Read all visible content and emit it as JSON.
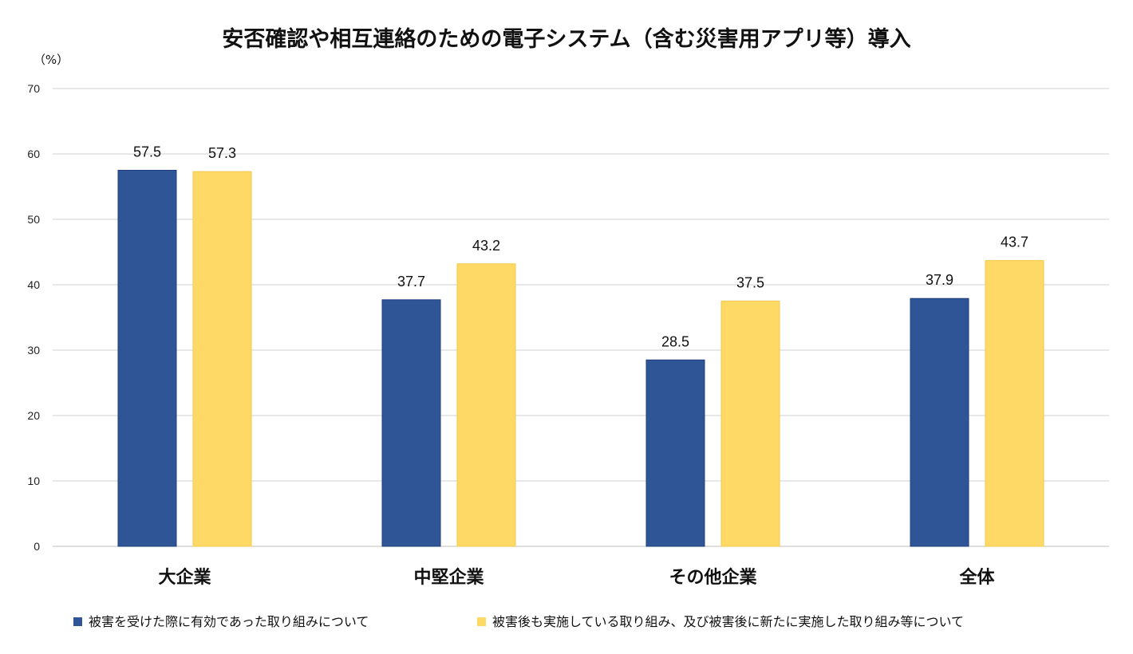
{
  "chart_data": {
    "type": "bar",
    "title": "安否確認や相互連絡のための電子システム（含む災害用アプリ等）導入",
    "y_unit_label": "（%）",
    "categories": [
      "大企業",
      "中堅企業",
      "その他企業",
      "全体"
    ],
    "series": [
      {
        "name": "被害を受けた際に有効であった取り組みについて",
        "values": [
          57.5,
          37.7,
          28.5,
          37.9
        ],
        "value_labels": [
          "57.5",
          "37.7",
          "28.5",
          "37.9"
        ],
        "color": "#2f5597"
      },
      {
        "name": "被害後も実施している取り組み、及び被害後に新たに実施した取り組み等について",
        "values": [
          57.3,
          43.2,
          37.5,
          43.7
        ],
        "value_labels": [
          "57.3",
          "43.2",
          "37.5",
          "43.7"
        ],
        "color": "#ffd966"
      }
    ],
    "ylim": [
      0,
      70
    ],
    "yticks": [
      0,
      10,
      20,
      30,
      40,
      50,
      60,
      70
    ],
    "ytick_labels": [
      "0",
      "10",
      "20",
      "30",
      "40",
      "50",
      "60",
      "70"
    ],
    "grid": true,
    "legend_position": "bottom"
  }
}
